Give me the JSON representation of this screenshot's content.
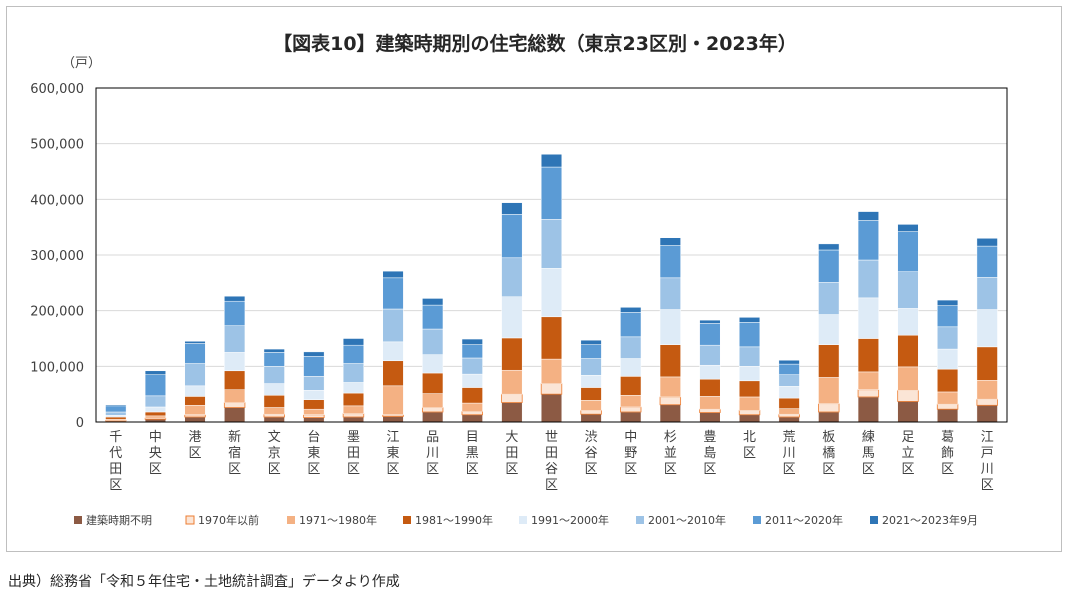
{
  "chart_data": {
    "type": "bar",
    "stacked": true,
    "title": "【図表10】建築時期別の住宅総数（東京23区別・2023年）",
    "unit_label": "（戸）",
    "xlabel": "",
    "ylabel": "（戸）",
    "ylim": [
      0,
      600000
    ],
    "yticks": [
      0,
      100000,
      200000,
      300000,
      400000,
      500000,
      600000
    ],
    "ytick_labels": [
      "0",
      "100,000",
      "200,000",
      "300,000",
      "400,000",
      "500,000",
      "600,000"
    ],
    "legend_position": "bottom",
    "categories": [
      "千代田区",
      "中央区",
      "港区",
      "新宿区",
      "文京区",
      "台東区",
      "墨田区",
      "江東区",
      "品川区",
      "目黒区",
      "大田区",
      "世田谷区",
      "渋谷区",
      "中野区",
      "杉並区",
      "豊島区",
      "北区",
      "荒川区",
      "板橋区",
      "練馬区",
      "足立区",
      "葛飾区",
      "江戸川区"
    ],
    "series": [
      {
        "name": "建築時期不明",
        "color": "#8c5a44",
        "values": [
          2000,
          5000,
          9000,
          26000,
          9000,
          8000,
          9000,
          10000,
          18000,
          13000,
          35000,
          50000,
          14000,
          18000,
          31000,
          17000,
          13000,
          9000,
          18000,
          45000,
          37000,
          23000,
          30000
        ]
      },
      {
        "name": "1970年以前",
        "color": "#fbe5d6",
        "values": [
          1000,
          2000,
          4000,
          9000,
          5000,
          5000,
          6000,
          3000,
          8000,
          6000,
          15000,
          19000,
          7000,
          9000,
          14000,
          6000,
          8000,
          5000,
          15000,
          13000,
          20000,
          9000,
          11000
        ]
      },
      {
        "name": "1971～1980年",
        "color": "#f4b183",
        "values": [
          2000,
          4000,
          17000,
          23000,
          12000,
          10000,
          14000,
          52000,
          25000,
          15000,
          43000,
          44000,
          18000,
          21000,
          36000,
          23000,
          24000,
          10000,
          47000,
          32000,
          42000,
          22000,
          34000
        ]
      },
      {
        "name": "1981～1990年",
        "color": "#c55a11",
        "values": [
          4000,
          7000,
          16000,
          34000,
          22000,
          17000,
          23000,
          45000,
          37000,
          28000,
          58000,
          76000,
          23000,
          34000,
          58000,
          31000,
          29000,
          19000,
          59000,
          60000,
          57000,
          41000,
          60000
        ]
      },
      {
        "name": "1991～2000年",
        "color": "#deebf7",
        "values": [
          3000,
          9000,
          19000,
          33000,
          21000,
          17000,
          19000,
          34000,
          33000,
          24000,
          74000,
          87000,
          22000,
          32000,
          63000,
          25000,
          26000,
          21000,
          54000,
          73000,
          48000,
          36000,
          67000
        ]
      },
      {
        "name": "2001～2010年",
        "color": "#9dc3e6",
        "values": [
          6000,
          20000,
          40000,
          48000,
          31000,
          25000,
          34000,
          59000,
          46000,
          29000,
          70000,
          88000,
          30000,
          39000,
          57000,
          36000,
          35000,
          21000,
          58000,
          68000,
          66000,
          40000,
          58000
        ]
      },
      {
        "name": "2011～2020年",
        "color": "#5b9bd5",
        "values": [
          11000,
          38000,
          36000,
          44000,
          25000,
          36000,
          33000,
          56000,
          43000,
          24000,
          78000,
          94000,
          25000,
          44000,
          58000,
          39000,
          44000,
          19000,
          58000,
          71000,
          72000,
          38000,
          56000
        ]
      },
      {
        "name": "2021～2023年9月",
        "color": "#2e75b6",
        "values": [
          2000,
          7000,
          4000,
          9000,
          6000,
          8000,
          12000,
          12000,
          12000,
          10000,
          21000,
          23000,
          8000,
          9000,
          14000,
          6000,
          9000,
          7000,
          11000,
          16000,
          13000,
          10000,
          14000
        ]
      }
    ]
  },
  "source_note": "出典）総務省「令和５年住宅・土地統計調査」データより作成"
}
